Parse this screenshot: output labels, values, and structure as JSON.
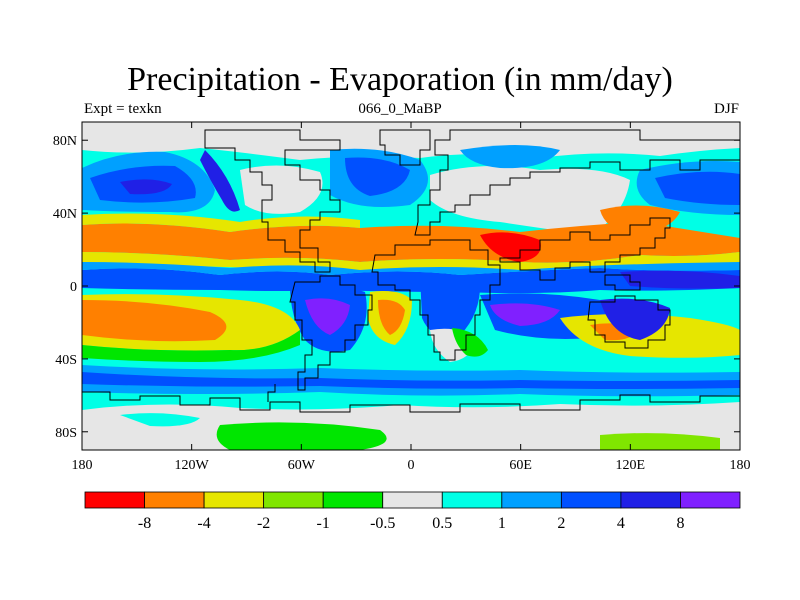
{
  "title": "Precipitation - Evaporation (in mm/day)",
  "subtitle": "066_0_MaBP",
  "left_label": "Expt = texkn",
  "right_label": "DJF",
  "colors": {
    "c0": "#ff0000",
    "c1": "#ff8000",
    "c2": "#e6e600",
    "c3": "#80e600",
    "c4": "#00e600",
    "c5": "#e6e6e6",
    "c6": "#00ffe6",
    "c7": "#00a0ff",
    "c8": "#0050ff",
    "c9": "#2020e6",
    "c10": "#8020ff"
  },
  "map": {
    "lon_ticks": [
      "180",
      "120W",
      "60W",
      "0",
      "60E",
      "120E",
      "180"
    ],
    "lat_ticks": [
      "80N",
      "40N",
      "0",
      "40S",
      "80S"
    ],
    "lat_tick_values": [
      80,
      40,
      0,
      -40,
      -80
    ]
  },
  "colorbar": {
    "labels": [
      "-8",
      "-4",
      "-2",
      "-1",
      "-0.5",
      "0.5",
      "1",
      "2",
      "4",
      "8"
    ],
    "colors": [
      "#ff0000",
      "#ff8000",
      "#e6e600",
      "#80e600",
      "#00e600",
      "#e6e6e6",
      "#00ffe6",
      "#00a0ff",
      "#0050ff",
      "#2020e6",
      "#8020ff"
    ]
  }
}
